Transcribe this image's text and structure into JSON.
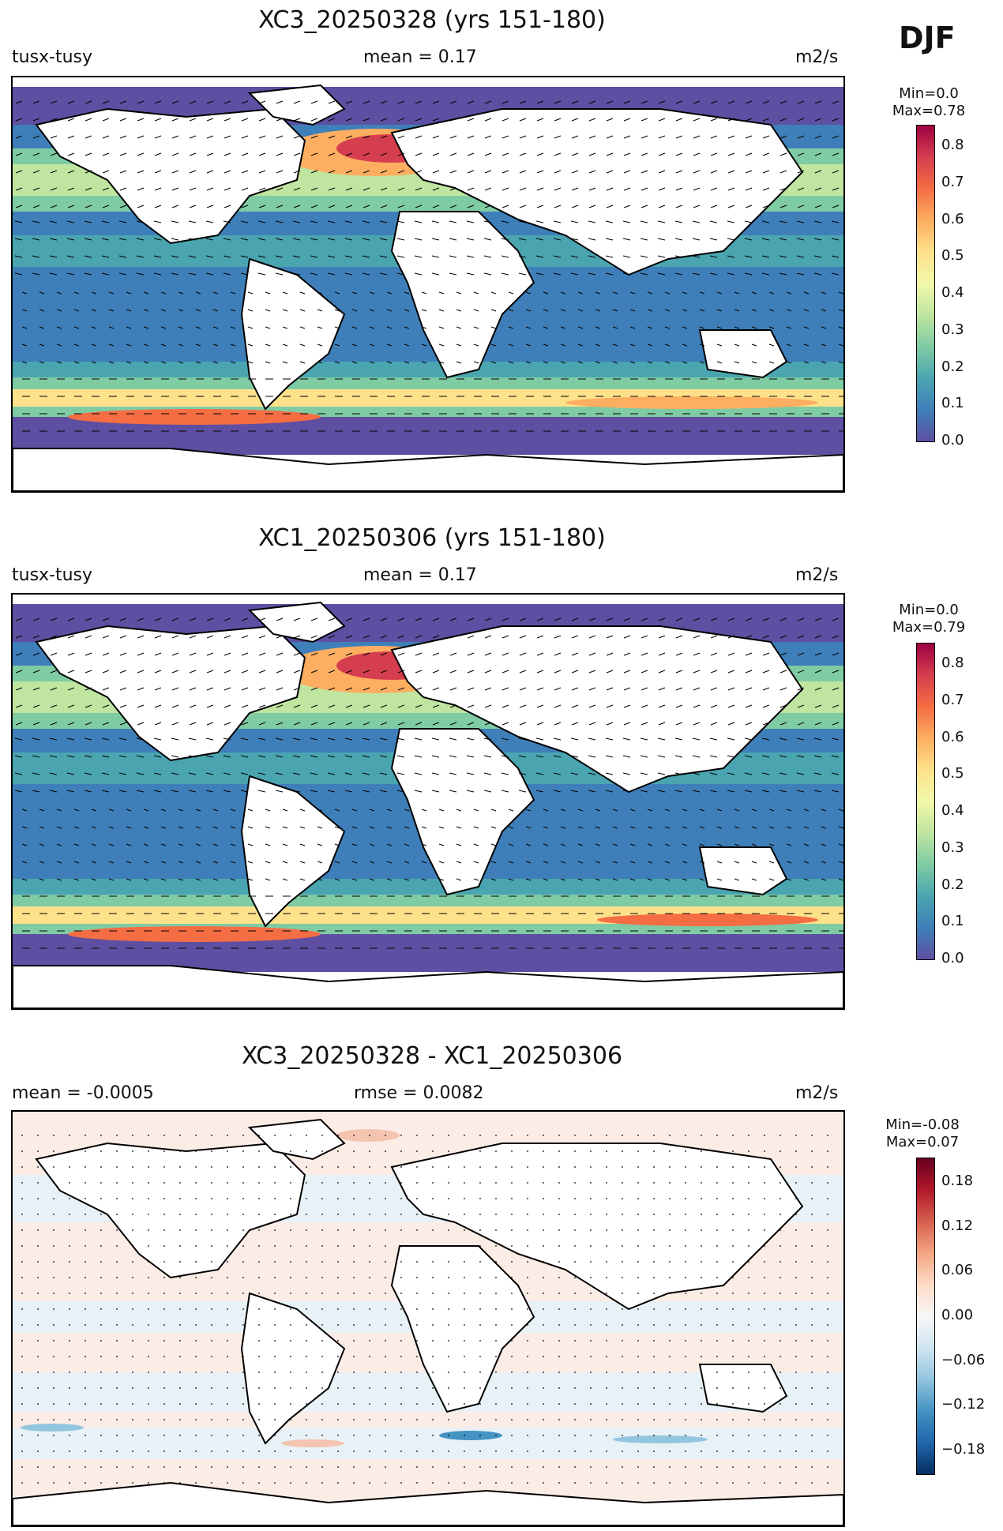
{
  "season": "DJF",
  "panels": [
    {
      "title": "XC3_20250328 (yrs 151-180)",
      "left_label": "tusx-tusy",
      "center_label": "mean = 0.17",
      "units": "m2/s",
      "cb_min": "Min=0.0",
      "cb_max": "Max=0.78",
      "ticks": [
        "0.0",
        "0.1",
        "0.2",
        "0.3",
        "0.4",
        "0.5",
        "0.6",
        "0.7",
        "0.8"
      ],
      "scale": "spectral"
    },
    {
      "title": "XC1_20250306 (yrs 151-180)",
      "left_label": "tusx-tusy",
      "center_label": "mean = 0.17",
      "units": "m2/s",
      "cb_min": "Min=0.0",
      "cb_max": "Max=0.79",
      "ticks": [
        "0.0",
        "0.1",
        "0.2",
        "0.3",
        "0.4",
        "0.5",
        "0.6",
        "0.7",
        "0.8"
      ],
      "scale": "spectral"
    },
    {
      "title": "XC3_20250328 - XC1_20250306",
      "left_label": "mean = -0.0005",
      "center_label": "rmse = 0.0082",
      "units": "m2/s",
      "cb_min": "Min=-0.08",
      "cb_max": "Max=0.07",
      "ticks": [
        "−0.18",
        "−0.12",
        "−0.06",
        "0.00",
        "0.06",
        "0.12",
        "0.18"
      ],
      "scale": "diverging"
    }
  ],
  "colors": {
    "spectral": [
      "#5e4fa2",
      "#3f7fb9",
      "#4aa5b0",
      "#7fcba4",
      "#bfe5a0",
      "#f1f9a9",
      "#fee18b",
      "#fdae61",
      "#f46d43",
      "#d53e4f",
      "#9e0142"
    ],
    "diverging": [
      "#053061",
      "#2166ac",
      "#4393c3",
      "#92c5de",
      "#d1e5f0",
      "#f7f7f7",
      "#fddbc7",
      "#f4a582",
      "#d6604d",
      "#b2182b",
      "#67001f"
    ],
    "land": "#ffffff",
    "coast": "#000000"
  }
}
